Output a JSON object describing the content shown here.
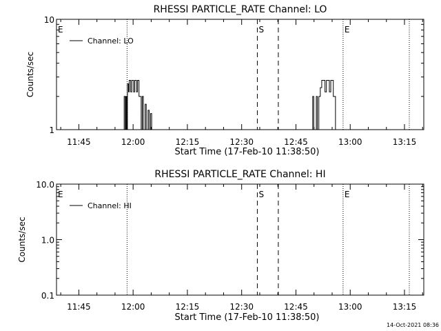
{
  "chart_data": [
    {
      "type": "line",
      "title": "RHESSI PARTICLE_RATE Channel: LO",
      "xlabel": "Start Time (17-Feb-10 11:38:50)",
      "ylabel": "Counts/sec",
      "yscale": "log",
      "ylim": [
        1,
        10
      ],
      "ytick_labels": [
        "1",
        "10"
      ],
      "xlim_minutes": [
        0,
        101.5
      ],
      "xtick_labels": [
        "11:45",
        "12:00",
        "12:15",
        "12:30",
        "12:45",
        "13:00",
        "13:15"
      ],
      "legend": {
        "label": "Channel: LO",
        "placement": "top-left"
      },
      "vertical_markers": [
        {
          "label": "E",
          "style": "dotted",
          "minute": 0
        },
        {
          "label": "",
          "style": "dotted",
          "minute": 19.5
        },
        {
          "label": "S",
          "style": "dashed",
          "minute": 55.5
        },
        {
          "label": "",
          "style": "dashed",
          "minute": 61.3
        },
        {
          "label": "E",
          "style": "dotted",
          "minute": 79.2
        },
        {
          "label": "",
          "style": "dotted",
          "minute": 97.5
        }
      ],
      "series": [
        {
          "name": "Channel: LO",
          "points": [
            [
              18.5,
              1
            ],
            [
              18.7,
              2
            ],
            [
              19.0,
              1
            ],
            [
              19.2,
              2
            ],
            [
              19.4,
              1
            ],
            [
              19.6,
              2.6
            ],
            [
              19.9,
              2.2
            ],
            [
              20.1,
              2.8
            ],
            [
              20.5,
              2.2
            ],
            [
              20.8,
              2.8
            ],
            [
              21.3,
              2.2
            ],
            [
              21.6,
              2.8
            ],
            [
              22.1,
              2.2
            ],
            [
              22.4,
              2.8
            ],
            [
              22.8,
              2.0
            ],
            [
              23.2,
              2.0
            ],
            [
              23.4,
              1
            ],
            [
              23.7,
              2
            ],
            [
              24.0,
              1
            ],
            [
              24.5,
              1.7
            ],
            [
              24.8,
              1
            ],
            [
              25.3,
              1.5
            ],
            [
              25.6,
              1
            ],
            [
              26.0,
              1.4
            ],
            [
              26.3,
              1
            ],
            [
              70.5,
              1
            ],
            [
              70.8,
              2
            ],
            [
              71.1,
              1
            ],
            [
              71.8,
              2
            ],
            [
              72.1,
              1
            ],
            [
              72.5,
              2.0
            ],
            [
              72.9,
              2.4
            ],
            [
              73.3,
              2.8
            ],
            [
              73.8,
              2.8
            ],
            [
              74.2,
              2.2
            ],
            [
              74.6,
              2.8
            ],
            [
              75.1,
              2.8
            ],
            [
              75.4,
              2.2
            ],
            [
              75.8,
              2.8
            ],
            [
              76.1,
              2.8
            ],
            [
              76.5,
              2.0
            ],
            [
              76.8,
              2.0
            ],
            [
              77.1,
              1
            ]
          ]
        }
      ]
    },
    {
      "type": "line",
      "title": "RHESSI PARTICLE_RATE Channel: HI",
      "xlabel": "Start Time (17-Feb-10 11:38:50)",
      "ylabel": "Counts/sec",
      "yscale": "log",
      "ylim": [
        0.1,
        10
      ],
      "ytick_labels": [
        "0.1",
        "1.0",
        "10.0"
      ],
      "xlim_minutes": [
        0,
        101.5
      ],
      "xtick_labels": [
        "11:45",
        "12:00",
        "12:15",
        "12:30",
        "12:45",
        "13:00",
        "13:15"
      ],
      "legend": {
        "label": "Channel: HI",
        "placement": "top-left"
      },
      "vertical_markers": [
        {
          "label": "E",
          "style": "dotted",
          "minute": 0
        },
        {
          "label": "",
          "style": "dotted",
          "minute": 19.5
        },
        {
          "label": "S",
          "style": "dashed",
          "minute": 55.5
        },
        {
          "label": "",
          "style": "dashed",
          "minute": 61.3
        },
        {
          "label": "E",
          "style": "dotted",
          "minute": 79.2
        },
        {
          "label": "",
          "style": "dotted",
          "minute": 97.5
        }
      ],
      "series": [
        {
          "name": "Channel: HI",
          "points": []
        }
      ]
    }
  ],
  "footer": {
    "timestamp": "14-Oct-2021 08:36"
  }
}
